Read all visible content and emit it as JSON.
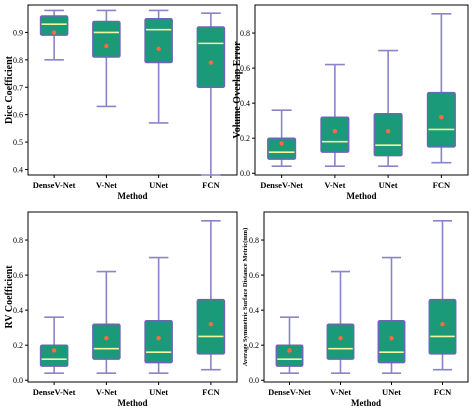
{
  "colors": {
    "box_fill": "#1a9a78",
    "box_edge": "#6d66b8",
    "whisker": "#8a84c8",
    "median": "#f3f3a0",
    "mean": "#ff6a3c",
    "axes": "#000000"
  },
  "chart_data": [
    {
      "type": "box",
      "ylabel": "Dice Coefficient",
      "xlabel": "Method",
      "categories": [
        "DenseV-Net",
        "V-Net",
        "UNet",
        "FCN"
      ],
      "ylim": [
        0.38,
        1.0
      ],
      "yticks": [
        0.4,
        0.5,
        0.6,
        0.7,
        0.8,
        0.9
      ],
      "ytick_labels": [
        "0.4",
        "0.5",
        "0.6",
        "0.7",
        "0.8",
        "0.9"
      ],
      "boxes": [
        {
          "min": 0.8,
          "q1": 0.89,
          "median": 0.93,
          "q3": 0.96,
          "max": 0.98,
          "mean": 0.9
        },
        {
          "min": 0.63,
          "q1": 0.81,
          "median": 0.9,
          "q3": 0.94,
          "max": 0.98,
          "mean": 0.85
        },
        {
          "min": 0.57,
          "q1": 0.79,
          "median": 0.91,
          "q3": 0.95,
          "max": 0.98,
          "mean": 0.84
        },
        {
          "min": 0.38,
          "q1": 0.7,
          "median": 0.86,
          "q3": 0.92,
          "max": 0.97,
          "mean": 0.79
        }
      ]
    },
    {
      "type": "box",
      "ylabel": "Volume Overlap Error",
      "xlabel": "Method",
      "categories": [
        "DenseV-Net",
        "V-Net",
        "UNet",
        "FCN"
      ],
      "ylim": [
        -0.01,
        0.96
      ],
      "yticks": [
        0.0,
        0.2,
        0.4,
        0.6,
        0.8
      ],
      "ytick_labels": [
        "0.0",
        "0.2",
        "0.4",
        "0.6",
        "0.8"
      ],
      "boxes": [
        {
          "min": 0.04,
          "q1": 0.08,
          "median": 0.12,
          "q3": 0.2,
          "max": 0.36,
          "mean": 0.17
        },
        {
          "min": 0.04,
          "q1": 0.12,
          "median": 0.18,
          "q3": 0.32,
          "max": 0.62,
          "mean": 0.24
        },
        {
          "min": 0.04,
          "q1": 0.1,
          "median": 0.16,
          "q3": 0.34,
          "max": 0.7,
          "mean": 0.24
        },
        {
          "min": 0.06,
          "q1": 0.15,
          "median": 0.25,
          "q3": 0.46,
          "max": 0.91,
          "mean": 0.32
        }
      ]
    },
    {
      "type": "box",
      "ylabel": "RV Coefficient",
      "xlabel": "Method",
      "categories": [
        "DenseV-Net",
        "V-Net",
        "UNet",
        "FCN"
      ],
      "ylim": [
        -0.01,
        0.96
      ],
      "yticks": [
        0.0,
        0.2,
        0.4,
        0.6,
        0.8
      ],
      "ytick_labels": [
        "0.0",
        "0.2",
        "0.4",
        "0.6",
        "0.8"
      ],
      "boxes": [
        {
          "min": 0.04,
          "q1": 0.08,
          "median": 0.12,
          "q3": 0.2,
          "max": 0.36,
          "mean": 0.17
        },
        {
          "min": 0.04,
          "q1": 0.12,
          "median": 0.18,
          "q3": 0.32,
          "max": 0.62,
          "mean": 0.24
        },
        {
          "min": 0.04,
          "q1": 0.1,
          "median": 0.16,
          "q3": 0.34,
          "max": 0.7,
          "mean": 0.24
        },
        {
          "min": 0.06,
          "q1": 0.15,
          "median": 0.25,
          "q3": 0.46,
          "max": 0.91,
          "mean": 0.32
        }
      ]
    },
    {
      "type": "box",
      "ylabel": "Average Symmetric Surface Distance Metric(mm)",
      "xlabel": "Method",
      "categories": [
        "DenseV-Net",
        "V-Net",
        "UNet",
        "FCN"
      ],
      "ylim": [
        -0.01,
        0.96
      ],
      "yticks": [
        0.0,
        0.2,
        0.4,
        0.6,
        0.8
      ],
      "ytick_labels": [
        "0.0",
        "0.2",
        "0.4",
        "0.6",
        "0.8"
      ],
      "boxes": [
        {
          "min": 0.04,
          "q1": 0.08,
          "median": 0.12,
          "q3": 0.2,
          "max": 0.36,
          "mean": 0.17
        },
        {
          "min": 0.04,
          "q1": 0.12,
          "median": 0.18,
          "q3": 0.32,
          "max": 0.62,
          "mean": 0.24
        },
        {
          "min": 0.04,
          "q1": 0.1,
          "median": 0.16,
          "q3": 0.34,
          "max": 0.7,
          "mean": 0.24
        },
        {
          "min": 0.06,
          "q1": 0.15,
          "median": 0.25,
          "q3": 0.46,
          "max": 0.91,
          "mean": 0.32
        }
      ]
    }
  ]
}
